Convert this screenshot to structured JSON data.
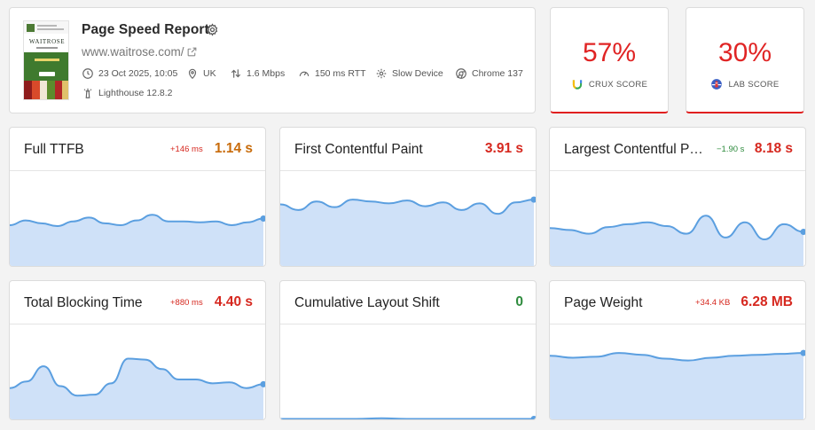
{
  "report": {
    "title": "Page Speed Report",
    "url": "www.waitrose.com/",
    "thumbnail_brand": "WAITROSE",
    "meta": {
      "date": "23 Oct 2025, 10:05",
      "location": "UK",
      "bandwidth": "1.6 Mbps",
      "rtt": "150 ms RTT",
      "device": "Slow Device",
      "browser": "Chrome 137",
      "lighthouse": "Lighthouse 12.8.2"
    }
  },
  "scores": {
    "crux": {
      "value": "57%",
      "label": "CRUX SCORE"
    },
    "lab": {
      "value": "30%",
      "label": "LAB SCORE"
    }
  },
  "colors": {
    "poor": "#d6281f",
    "needs_improvement": "#c86b0a",
    "good": "#2e8b3d",
    "spark_line": "#5b9fe0",
    "spark_fill": "#cfe1f8"
  },
  "metrics": [
    {
      "name": "Full TTFB",
      "delta": "+146 ms",
      "value": "1.14 s",
      "status": "orange",
      "trend": [
        0.43,
        0.48,
        0.45,
        0.42,
        0.47,
        0.51,
        0.45,
        0.43,
        0.48,
        0.54,
        0.47,
        0.47,
        0.46,
        0.47,
        0.43,
        0.46,
        0.5
      ]
    },
    {
      "name": "First Contentful Paint",
      "delta": "",
      "value": "3.91 s",
      "status": "red",
      "trend": [
        0.65,
        0.59,
        0.68,
        0.62,
        0.7,
        0.68,
        0.66,
        0.69,
        0.63,
        0.67,
        0.59,
        0.66,
        0.55,
        0.67,
        0.7
      ]
    },
    {
      "name": "Largest Contentful P…",
      "delta": "−1.90 s",
      "value": "8.18 s",
      "status": "red",
      "delta_status": "green",
      "trend": [
        0.4,
        0.38,
        0.34,
        0.41,
        0.44,
        0.46,
        0.42,
        0.34,
        0.53,
        0.3,
        0.46,
        0.28,
        0.44,
        0.36
      ]
    },
    {
      "name": "Total Blocking Time",
      "delta": "+880 ms",
      "value": "4.40 s",
      "status": "red",
      "trend": [
        0.33,
        0.4,
        0.56,
        0.35,
        0.25,
        0.26,
        0.38,
        0.64,
        0.63,
        0.53,
        0.42,
        0.42,
        0.38,
        0.39,
        0.33,
        0.37
      ]
    },
    {
      "name": "Cumulative Layout Shift",
      "delta": "",
      "value": "0",
      "status": "green",
      "trend": [
        0.005,
        0.005,
        0.005,
        0.005,
        0.012,
        0.005,
        0.005,
        0.005,
        0.005,
        0.005,
        0.005
      ]
    },
    {
      "name": "Page Weight",
      "delta": "+34.4 KB",
      "value": "6.28 MB",
      "status": "red",
      "trend": [
        0.67,
        0.65,
        0.66,
        0.7,
        0.68,
        0.64,
        0.62,
        0.65,
        0.67,
        0.68,
        0.69,
        0.7
      ]
    }
  ]
}
